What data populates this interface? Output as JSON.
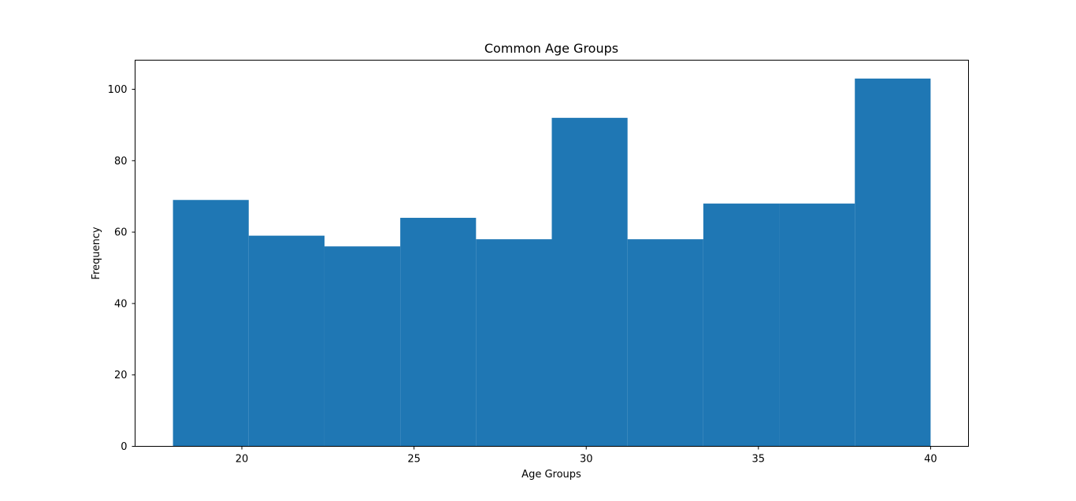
{
  "chart_data": {
    "type": "bar",
    "subtype": "histogram",
    "title": "Common Age Groups",
    "xlabel": "Age Groups",
    "ylabel": "Frequency",
    "bin_edges": [
      18,
      20.2,
      22.4,
      24.6,
      26.8,
      29,
      31.2,
      33.4,
      35.6,
      37.8,
      40
    ],
    "values": [
      69,
      59,
      56,
      64,
      58,
      92,
      58,
      68,
      68,
      103
    ],
    "xlim": [
      16.9,
      41.1
    ],
    "ylim": [
      0,
      108.15
    ],
    "xticks": [
      20,
      25,
      30,
      35,
      40
    ],
    "yticks": [
      0,
      20,
      40,
      60,
      80,
      100
    ],
    "bar_color": "#1f77b4",
    "grid": false,
    "legend": "none"
  }
}
